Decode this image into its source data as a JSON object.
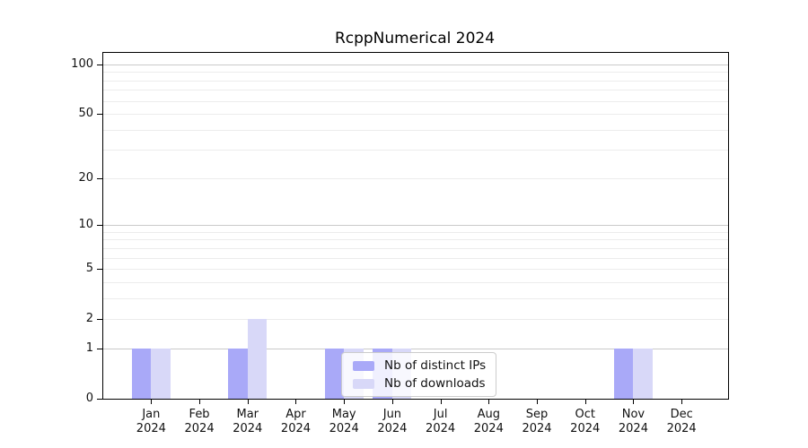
{
  "chart_data": {
    "type": "bar",
    "title": "RcppNumerical 2024",
    "year": "2024",
    "categories": [
      "Jan",
      "Feb",
      "Mar",
      "Apr",
      "May",
      "Jun",
      "Jul",
      "Aug",
      "Sep",
      "Oct",
      "Nov",
      "Dec"
    ],
    "series": [
      {
        "name": "Nb of distinct IPs",
        "color": "#a9a9f8",
        "values": [
          1,
          0,
          1,
          0,
          1,
          1,
          0,
          0,
          0,
          0,
          1,
          0
        ]
      },
      {
        "name": "Nb of downloads",
        "color": "#d8d8f8",
        "values": [
          1,
          0,
          2,
          0,
          1,
          1,
          0,
          0,
          0,
          0,
          1,
          0
        ]
      }
    ],
    "xlabel": "",
    "ylabel": "",
    "y_scale": "log1p",
    "ylim": [
      0,
      118
    ],
    "y_tick_values": [
      0,
      1,
      2,
      5,
      10,
      20,
      50,
      100
    ],
    "y_major_gridlines": [
      1,
      10,
      100
    ],
    "y_minor_gridlines": [
      2,
      3,
      4,
      5,
      6,
      7,
      8,
      9,
      20,
      30,
      40,
      50,
      60,
      70,
      80,
      90
    ],
    "grid": true,
    "legend": {
      "position": "inside-lower-center",
      "entries": [
        "Nb of distinct IPs",
        "Nb of downloads"
      ]
    },
    "colors": {
      "axis": "#000000",
      "major_grid": "#c9c9c9",
      "minor_grid": "#ececec",
      "background": "#ffffff",
      "text": "#111111"
    }
  }
}
